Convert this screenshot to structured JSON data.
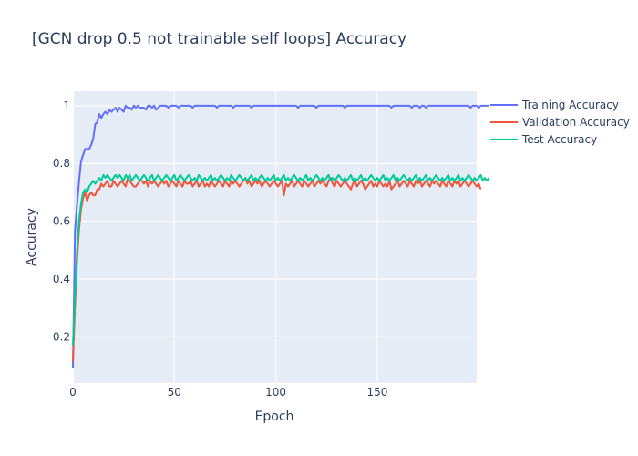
{
  "chart_data": {
    "type": "line",
    "title": "[GCN drop 0.5 not trainable self loops] Accuracy",
    "xlabel": "Epoch",
    "ylabel": "Accuracy",
    "xlim": [
      0,
      199
    ],
    "ylim": [
      0.04,
      1.05
    ],
    "x_ticks": [
      0,
      50,
      100,
      150
    ],
    "y_ticks": [
      0.2,
      0.4,
      0.6,
      0.8,
      1
    ],
    "x_tick_labels": [
      "0",
      "50",
      "100",
      "150"
    ],
    "y_tick_labels": [
      "0.2",
      "0.4",
      "0.6",
      "0.8",
      "1"
    ],
    "grid": true,
    "legend_position": "top-right",
    "background_color": "#E5ECF6",
    "series": [
      {
        "name": "Training Accuracy",
        "color": "#636EFA",
        "values": [
          0.093,
          0.564,
          0.655,
          0.736,
          0.807,
          0.829,
          0.85,
          0.85,
          0.85,
          0.864,
          0.886,
          0.936,
          0.943,
          0.971,
          0.957,
          0.971,
          0.979,
          0.971,
          0.986,
          0.979,
          0.986,
          0.993,
          0.979,
          0.993,
          0.986,
          0.979,
          1,
          0.993,
          0.993,
          0.986,
          1,
          0.993,
          1,
          0.993,
          0.993,
          0.993,
          0.986,
          1,
          1,
          0.993,
          1,
          0.986,
          0.993,
          1,
          1,
          1,
          1,
          0.993,
          1,
          1,
          1,
          1,
          0.993,
          1,
          1,
          1,
          1,
          1,
          1,
          0.993,
          1,
          1,
          1,
          1,
          1,
          1,
          1,
          1,
          1,
          1,
          1,
          0.993,
          1,
          1,
          1,
          1,
          1,
          1,
          1,
          0.993,
          1,
          1,
          1,
          1,
          1,
          1,
          1,
          1,
          0.993,
          1,
          1,
          1,
          1,
          1,
          1,
          1,
          1,
          1,
          1,
          1,
          1,
          1,
          1,
          1,
          1,
          1,
          1,
          1,
          1,
          1,
          1,
          0.993,
          1,
          1,
          1,
          1,
          1,
          1,
          1,
          1,
          0.993,
          1,
          1,
          1,
          1,
          1,
          1,
          1,
          1,
          1,
          1,
          1,
          1,
          1,
          0.993,
          1,
          1,
          1,
          1,
          1,
          1,
          1,
          1,
          1,
          1,
          1,
          1,
          1,
          1,
          1,
          1,
          1,
          1,
          1,
          1,
          1,
          1,
          0.993,
          1,
          1,
          1,
          1,
          1,
          1,
          1,
          1,
          1,
          0.993,
          1,
          1,
          1,
          0.993,
          1,
          1,
          0.993,
          1,
          1,
          1,
          1,
          1,
          1,
          1,
          1,
          1,
          1,
          1,
          1,
          1,
          1,
          1,
          1,
          1,
          1,
          1,
          1,
          1,
          0.993,
          1,
          1,
          1,
          0.993,
          1,
          1,
          1,
          1,
          1
        ]
      },
      {
        "name": "Validation Accuracy",
        "color": "#EF553B",
        "values": [
          0.114,
          0.3,
          0.46,
          0.57,
          0.64,
          0.68,
          0.7,
          0.67,
          0.69,
          0.7,
          0.69,
          0.69,
          0.71,
          0.71,
          0.73,
          0.72,
          0.73,
          0.74,
          0.72,
          0.72,
          0.74,
          0.73,
          0.72,
          0.73,
          0.74,
          0.73,
          0.72,
          0.75,
          0.74,
          0.73,
          0.72,
          0.72,
          0.73,
          0.74,
          0.74,
          0.73,
          0.74,
          0.72,
          0.74,
          0.73,
          0.74,
          0.73,
          0.72,
          0.73,
          0.74,
          0.73,
          0.74,
          0.72,
          0.73,
          0.74,
          0.73,
          0.72,
          0.74,
          0.73,
          0.72,
          0.74,
          0.73,
          0.73,
          0.74,
          0.72,
          0.73,
          0.74,
          0.72,
          0.73,
          0.74,
          0.72,
          0.73,
          0.72,
          0.74,
          0.73,
          0.72,
          0.73,
          0.74,
          0.73,
          0.72,
          0.74,
          0.73,
          0.72,
          0.74,
          0.73,
          0.74,
          0.73,
          0.72,
          0.73,
          0.74,
          0.75,
          0.73,
          0.74,
          0.72,
          0.73,
          0.74,
          0.73,
          0.74,
          0.72,
          0.73,
          0.74,
          0.73,
          0.72,
          0.73,
          0.74,
          0.73,
          0.72,
          0.73,
          0.74,
          0.69,
          0.73,
          0.72,
          0.73,
          0.74,
          0.72,
          0.73,
          0.74,
          0.73,
          0.72,
          0.74,
          0.73,
          0.72,
          0.73,
          0.74,
          0.72,
          0.73,
          0.74,
          0.73,
          0.74,
          0.73,
          0.72,
          0.74,
          0.75,
          0.73,
          0.72,
          0.74,
          0.73,
          0.72,
          0.73,
          0.74,
          0.73,
          0.72,
          0.71,
          0.73,
          0.74,
          0.72,
          0.73,
          0.74,
          0.73,
          0.71,
          0.72,
          0.73,
          0.74,
          0.72,
          0.73,
          0.72,
          0.74,
          0.73,
          0.72,
          0.73,
          0.72,
          0.74,
          0.71,
          0.72,
          0.73,
          0.74,
          0.72,
          0.73,
          0.74,
          0.73,
          0.72,
          0.74,
          0.73,
          0.72,
          0.74,
          0.73,
          0.74,
          0.72,
          0.73,
          0.74,
          0.73,
          0.72,
          0.74,
          0.73,
          0.74,
          0.73,
          0.72,
          0.74,
          0.73,
          0.72,
          0.74,
          0.73,
          0.72,
          0.74,
          0.73,
          0.74,
          0.72,
          0.73,
          0.74,
          0.73,
          0.72,
          0.73,
          0.74,
          0.73,
          0.72,
          0.73,
          0.71
        ]
      },
      {
        "name": "Test Accuracy",
        "color": "#00CC96",
        "values": [
          0.17,
          0.34,
          0.49,
          0.6,
          0.66,
          0.7,
          0.71,
          0.7,
          0.72,
          0.73,
          0.74,
          0.73,
          0.74,
          0.75,
          0.74,
          0.76,
          0.75,
          0.76,
          0.75,
          0.74,
          0.75,
          0.76,
          0.75,
          0.76,
          0.75,
          0.74,
          0.76,
          0.75,
          0.76,
          0.74,
          0.75,
          0.76,
          0.75,
          0.74,
          0.75,
          0.76,
          0.75,
          0.74,
          0.75,
          0.76,
          0.74,
          0.75,
          0.76,
          0.75,
          0.74,
          0.75,
          0.76,
          0.75,
          0.74,
          0.75,
          0.76,
          0.74,
          0.75,
          0.76,
          0.75,
          0.74,
          0.75,
          0.76,
          0.75,
          0.74,
          0.75,
          0.74,
          0.76,
          0.75,
          0.74,
          0.75,
          0.74,
          0.75,
          0.76,
          0.74,
          0.75,
          0.74,
          0.75,
          0.76,
          0.75,
          0.74,
          0.75,
          0.74,
          0.76,
          0.75,
          0.74,
          0.75,
          0.76,
          0.75,
          0.74,
          0.75,
          0.74,
          0.75,
          0.76,
          0.74,
          0.75,
          0.74,
          0.75,
          0.76,
          0.75,
          0.74,
          0.75,
          0.74,
          0.75,
          0.76,
          0.74,
          0.75,
          0.74,
          0.75,
          0.76,
          0.74,
          0.75,
          0.74,
          0.75,
          0.76,
          0.75,
          0.74,
          0.75,
          0.74,
          0.75,
          0.76,
          0.74,
          0.75,
          0.74,
          0.75,
          0.76,
          0.75,
          0.74,
          0.75,
          0.74,
          0.75,
          0.76,
          0.74,
          0.75,
          0.74,
          0.75,
          0.76,
          0.75,
          0.74,
          0.75,
          0.74,
          0.75,
          0.76,
          0.74,
          0.75,
          0.74,
          0.75,
          0.76,
          0.74,
          0.75,
          0.74,
          0.75,
          0.76,
          0.75,
          0.74,
          0.75,
          0.74,
          0.75,
          0.76,
          0.74,
          0.75,
          0.74,
          0.75,
          0.76,
          0.74,
          0.75,
          0.74,
          0.75,
          0.76,
          0.75,
          0.74,
          0.75,
          0.74,
          0.75,
          0.76,
          0.74,
          0.75,
          0.74,
          0.75,
          0.76,
          0.74,
          0.75,
          0.74,
          0.75,
          0.76,
          0.75,
          0.74,
          0.75,
          0.74,
          0.75,
          0.76,
          0.74,
          0.75,
          0.74,
          0.75,
          0.76,
          0.74,
          0.75,
          0.74,
          0.75,
          0.76,
          0.75,
          0.74,
          0.75,
          0.74,
          0.75,
          0.76,
          0.74,
          0.75,
          0.74,
          0.75
        ]
      }
    ]
  }
}
